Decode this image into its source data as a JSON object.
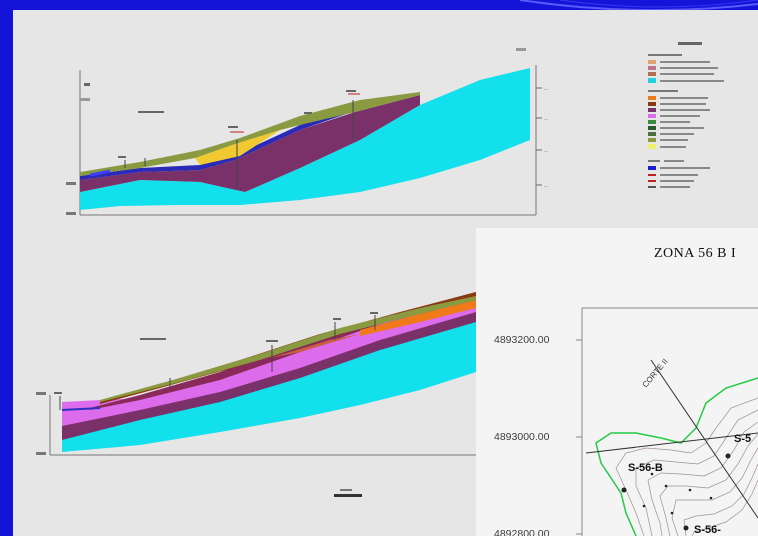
{
  "map": {
    "title": "ZONA 56 B I",
    "y_ticks": [
      "4893200.00",
      "4893000.00",
      "4892800.00"
    ],
    "boreholes": [
      "S-56-B",
      "S-5",
      "S-56-"
    ]
  },
  "colors": {
    "slide_background": "#1414d8",
    "bedrock": "#12e0ec",
    "clay_purple": "#7a3068",
    "violet_layer": "#dd6cec",
    "orange_layer": "#f07a18",
    "brown_layer": "#8a3a10",
    "olive_layer": "#8a9a40",
    "yellow_layer": "#f0c830",
    "contour_green": "#22cc44"
  }
}
